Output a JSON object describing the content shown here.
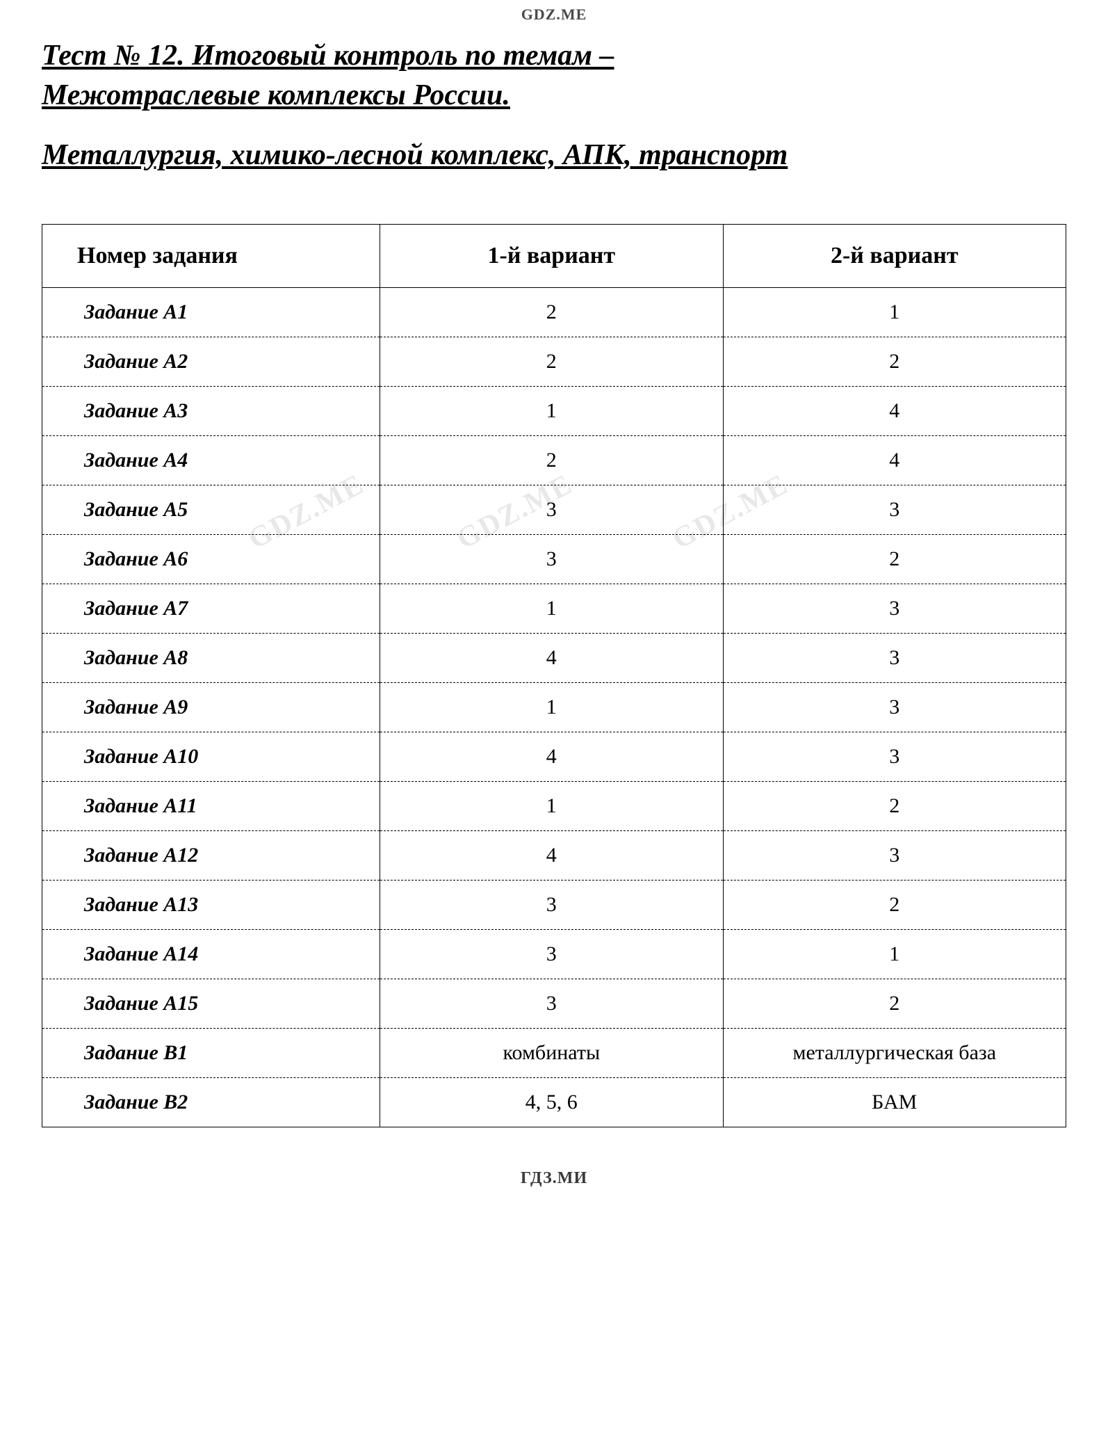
{
  "watermark_top": "GDZ.ME",
  "watermark_bottom": "ГДЗ.МИ",
  "watermark_diag": "GDZ.ME",
  "title": {
    "line1": "Тест № 12. Итоговый контроль по темам –",
    "line2": "Межотраслевые комплексы России.",
    "subtitle": "Металлургия, химико-лесной комплекс, АПК, транспорт"
  },
  "table": {
    "columns": [
      "Номер задания",
      "1-й вариант",
      "2-й вариант"
    ],
    "rows": [
      [
        "Задание A1",
        "2",
        "1"
      ],
      [
        "Задание A2",
        "2",
        "2"
      ],
      [
        "Задание A3",
        "1",
        "4"
      ],
      [
        "Задание A4",
        "2",
        "4"
      ],
      [
        "Задание A5",
        "3",
        "3"
      ],
      [
        "Задание A6",
        "3",
        "2"
      ],
      [
        "Задание A7",
        "1",
        "3"
      ],
      [
        "Задание A8",
        "4",
        "3"
      ],
      [
        "Задание A9",
        "1",
        "3"
      ],
      [
        "Задание A10",
        "4",
        "3"
      ],
      [
        "Задание A11",
        "1",
        "2"
      ],
      [
        "Задание A12",
        "4",
        "3"
      ],
      [
        "Задание A13",
        "3",
        "2"
      ],
      [
        "Задание A14",
        "3",
        "1"
      ],
      [
        "Задание A15",
        "3",
        "2"
      ],
      [
        "Задание B1",
        "комбинаты",
        "металлургическая база"
      ],
      [
        "Задание B2",
        "4, 5, 6",
        "БАМ"
      ]
    ],
    "header_fontsize": 34,
    "cell_fontsize": 30,
    "border_color": "#000000",
    "row_border_style": "dashed",
    "outer_border_style": "solid",
    "background_color": "#ffffff",
    "text_color": "#000000"
  },
  "typography": {
    "title_fontsize": 42,
    "title_style": "bold italic underline",
    "font_family": "Times New Roman"
  }
}
